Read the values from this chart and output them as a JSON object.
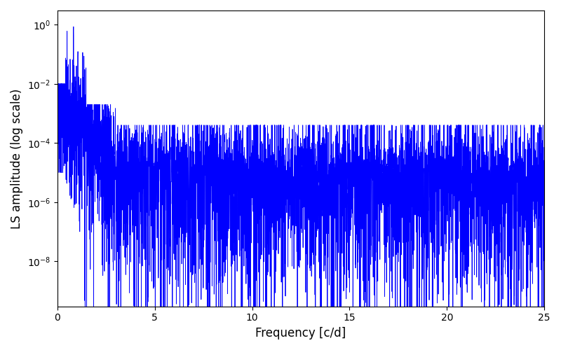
{
  "xlabel": "Frequency [c/d]",
  "ylabel": "LS amplitude (log scale)",
  "line_color": "#0000ff",
  "xlim": [
    0,
    25
  ],
  "ylim_low": 3e-10,
  "ylim_high": 3.0,
  "xticks": [
    0,
    5,
    10,
    15,
    20,
    25
  ],
  "figsize": [
    8.0,
    5.0
  ],
  "dpi": 100,
  "n_points": 5000,
  "freq_max": 25.0,
  "seed": 7
}
